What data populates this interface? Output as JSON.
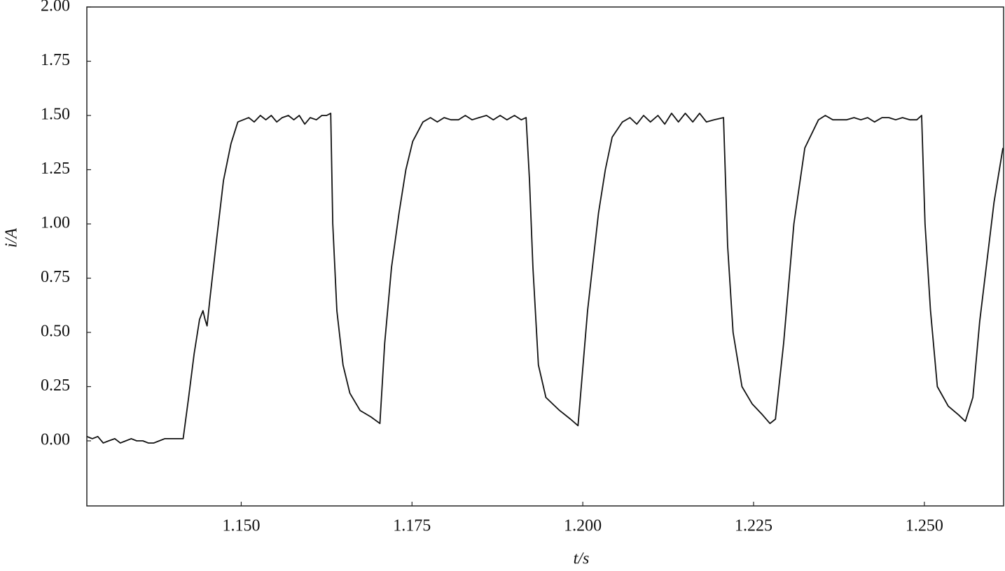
{
  "chart_data": {
    "type": "line",
    "x_label": "t/s",
    "y_label": "i/A",
    "color": "#111111",
    "xlim": [
      1.1274,
      1.2616
    ],
    "ylim": [
      -0.3,
      2.0
    ],
    "xticks": [
      {
        "value": 1.15,
        "label": "1.150"
      },
      {
        "value": 1.175,
        "label": "1.175"
      },
      {
        "value": 1.2,
        "label": "1.200"
      },
      {
        "value": 1.225,
        "label": "1.225"
      },
      {
        "value": 1.25,
        "label": "1.250"
      }
    ],
    "yticks": [
      {
        "value": 0,
        "label": "0.00"
      },
      {
        "value": 0.25,
        "label": "0.25"
      },
      {
        "value": 0.5,
        "label": "0.50"
      },
      {
        "value": 0.75,
        "label": "0.75"
      },
      {
        "value": 1,
        "label": "1.00"
      },
      {
        "value": 1.25,
        "label": "1.25"
      },
      {
        "value": 1.5,
        "label": "1.50"
      },
      {
        "value": 1.75,
        "label": "1.75"
      },
      {
        "value": 2,
        "label": "2.00"
      }
    ],
    "x": [
      1.1274,
      1.1282,
      1.129,
      1.1298,
      1.1306,
      1.1315,
      1.1323,
      1.1331,
      1.1339,
      1.1347,
      1.1356,
      1.1364,
      1.1372,
      1.138,
      1.1388,
      1.1397,
      1.1405,
      1.1415,
      1.1423,
      1.1431,
      1.1439,
      1.1444,
      1.1447,
      1.145,
      1.1454,
      1.1464,
      1.1474,
      1.1485,
      1.1495,
      1.1503,
      1.1511,
      1.1519,
      1.1528,
      1.1536,
      1.1544,
      1.1552,
      1.156,
      1.1569,
      1.1577,
      1.1585,
      1.1593,
      1.1601,
      1.161,
      1.1618,
      1.1625,
      1.1631,
      1.1634,
      1.164,
      1.1649,
      1.1659,
      1.1674,
      1.169,
      1.1703,
      1.171,
      1.172,
      1.1731,
      1.1741,
      1.1751,
      1.1766,
      1.1777,
      1.1787,
      1.1797,
      1.1807,
      1.1818,
      1.1828,
      1.1838,
      1.1848,
      1.1859,
      1.1869,
      1.1879,
      1.1889,
      1.19,
      1.191,
      1.1917,
      1.1922,
      1.1927,
      1.1935,
      1.1946,
      1.1966,
      1.1982,
      1.1993,
      1.2007,
      1.2023,
      1.2033,
      1.2043,
      1.2058,
      1.2069,
      1.2079,
      1.2089,
      1.2099,
      1.211,
      1.212,
      1.213,
      1.214,
      1.215,
      1.2161,
      1.2171,
      1.2181,
      1.2192,
      1.2206,
      1.2212,
      1.222,
      1.2233,
      1.2248,
      1.2263,
      1.2274,
      1.2282,
      1.2294,
      1.2309,
      1.2325,
      1.2345,
      1.2355,
      1.2366,
      1.2376,
      1.2386,
      1.2397,
      1.2407,
      1.2417,
      1.2427,
      1.2438,
      1.2448,
      1.2458,
      1.2468,
      1.2479,
      1.2489,
      1.2496,
      1.2501,
      1.2509,
      1.2519,
      1.2535,
      1.255,
      1.256,
      1.2571,
      1.2581,
      1.2602,
      1.2615
    ],
    "values": [
      0.02,
      0.01,
      0.02,
      -0.01,
      0.0,
      0.01,
      -0.01,
      0.0,
      0.01,
      0.0,
      0.0,
      -0.01,
      -0.01,
      0.0,
      0.01,
      0.01,
      0.01,
      0.01,
      0.2,
      0.4,
      0.56,
      0.6,
      0.56,
      0.53,
      0.65,
      0.93,
      1.2,
      1.37,
      1.47,
      1.48,
      1.49,
      1.47,
      1.5,
      1.48,
      1.5,
      1.47,
      1.49,
      1.5,
      1.48,
      1.5,
      1.46,
      1.49,
      1.48,
      1.5,
      1.5,
      1.51,
      1.0,
      0.6,
      0.35,
      0.22,
      0.14,
      0.11,
      0.08,
      0.45,
      0.8,
      1.05,
      1.25,
      1.38,
      1.47,
      1.49,
      1.47,
      1.49,
      1.48,
      1.48,
      1.5,
      1.48,
      1.49,
      1.5,
      1.48,
      1.5,
      1.48,
      1.5,
      1.48,
      1.49,
      1.2,
      0.8,
      0.35,
      0.2,
      0.14,
      0.1,
      0.07,
      0.6,
      1.05,
      1.25,
      1.4,
      1.47,
      1.49,
      1.46,
      1.5,
      1.47,
      1.5,
      1.46,
      1.51,
      1.47,
      1.51,
      1.47,
      1.51,
      1.47,
      1.48,
      1.49,
      0.9,
      0.5,
      0.25,
      0.17,
      0.12,
      0.08,
      0.1,
      0.45,
      1.0,
      1.35,
      1.48,
      1.5,
      1.48,
      1.48,
      1.48,
      1.49,
      1.48,
      1.49,
      1.47,
      1.49,
      1.49,
      1.48,
      1.49,
      1.48,
      1.48,
      1.5,
      1.0,
      0.6,
      0.25,
      0.16,
      0.12,
      0.09,
      0.2,
      0.55,
      1.1,
      1.35
    ]
  }
}
